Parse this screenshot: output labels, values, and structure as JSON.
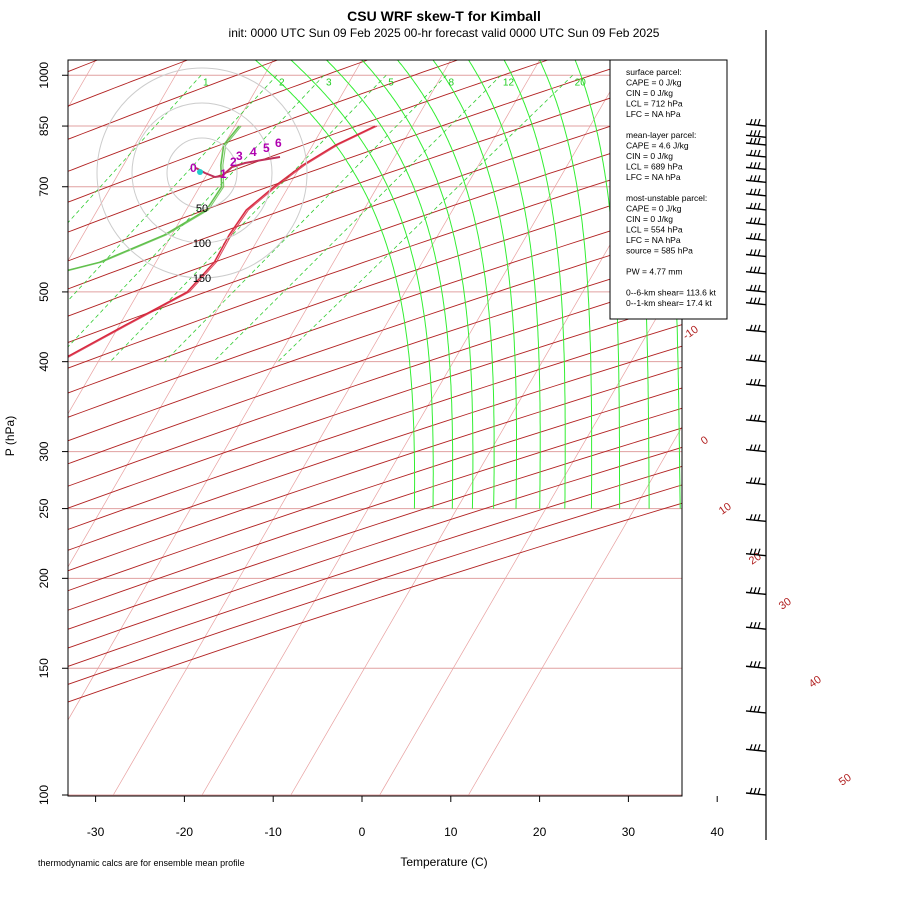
{
  "title": "CSU WRF skew-T for Kimball",
  "subtitle": "init: 0000 UTC Sun 09 Feb 2025    00-hr forecast valid 0000 UTC Sun 09 Feb 2025",
  "footnote": "thermodynamic calcs are for ensemble mean profile",
  "colors": {
    "temperature": "#d7263d",
    "dewpoint": "#5fbf4a",
    "isotherm": "#e8a0a0",
    "dry_adiabat": "#b22222",
    "moist_adiabat": "#33ee33",
    "mixing_ratio": "#33cc33",
    "isobar": "#e0a0a0",
    "hodograph": "#c0305a",
    "hodograph_label": "#b000b0"
  },
  "legend_box": {
    "lines": [
      "surface parcel:",
      "CAPE = 0 J/kg",
      "CIN = 0 J/kg",
      "LCL = 712 hPa",
      "LFC = NA hPa",
      "",
      "mean-layer parcel:",
      "CAPE = 4.6 J/kg",
      "CIN = 0 J/kg",
      "LCL = 689 hPa",
      "LFC = NA hPa",
      "",
      "most-unstable parcel:",
      "CAPE = 0 J/kg",
      "CIN = 0 J/kg",
      "LCL = 554 hPa",
      "LFC = NA hPa",
      "source = 585 hPa",
      "",
      "PW =  4.77 mm",
      "",
      "0--6-km shear= 113.6 kt",
      "0--1-km shear= 17.4 kt"
    ]
  },
  "hodograph": {
    "ring_labels": [
      "50",
      "100",
      "150"
    ],
    "height_labels": [
      "0",
      "1",
      "2",
      "3",
      "4",
      "5",
      "6"
    ]
  },
  "chart_data": {
    "type": "skew-T",
    "xlabel": "Temperature (C)",
    "ylabel": "P (hPa)",
    "x_ticks": [
      -30,
      -20,
      -10,
      0,
      10,
      20,
      30,
      40
    ],
    "y_ticks": [
      100,
      150,
      200,
      250,
      300,
      400,
      500,
      700,
      850,
      1000
    ],
    "xlim": [
      -33,
      45
    ],
    "ylim": [
      1050,
      100
    ],
    "y_scale": "log",
    "isotherm_labels": [
      "-10",
      "0",
      "10",
      "20",
      "30",
      "40",
      "50"
    ],
    "mixing_ratio_labels": [
      "1",
      "2",
      "3",
      "5",
      "8",
      "12",
      "20"
    ],
    "series": [
      {
        "name": "temperature",
        "points": [
          [
            850,
            5.8
          ],
          [
            800,
            2.6
          ],
          [
            750,
            0.2
          ],
          [
            700,
            -1.6
          ],
          [
            650,
            -3.2
          ],
          [
            600,
            -3.5
          ],
          [
            550,
            -3.4
          ],
          [
            500,
            -4.5
          ],
          [
            450,
            -9.3
          ],
          [
            400,
            -14.5
          ],
          [
            350,
            -22.3
          ],
          [
            330,
            -27.0
          ],
          [
            300,
            -31.7
          ],
          [
            270,
            -37.0
          ],
          [
            250,
            -41.2
          ],
          [
            220,
            -47.0
          ],
          [
            200,
            -52.0
          ],
          [
            180,
            -57.5
          ],
          [
            160,
            -61.8
          ],
          [
            140,
            -66.6
          ],
          [
            120,
            -70.4
          ],
          [
            100,
            -74.8
          ]
        ]
      },
      {
        "name": "dewpoint",
        "points": [
          [
            850,
            -9.5
          ],
          [
            800,
            -10.0
          ],
          [
            750,
            -9.0
          ],
          [
            700,
            -7.5
          ],
          [
            650,
            -7.7
          ],
          [
            600,
            -10.8
          ],
          [
            550,
            -16.3
          ],
          [
            500,
            -27.5
          ],
          [
            450,
            -33.7
          ],
          [
            400,
            -39.0
          ],
          [
            350,
            -45.5
          ],
          [
            300,
            -53.8
          ],
          [
            270,
            -58.3
          ],
          [
            250,
            -60.6
          ],
          [
            220,
            -64.6
          ],
          [
            200,
            -67.0
          ],
          [
            190,
            -68.3
          ]
        ]
      }
    ]
  }
}
